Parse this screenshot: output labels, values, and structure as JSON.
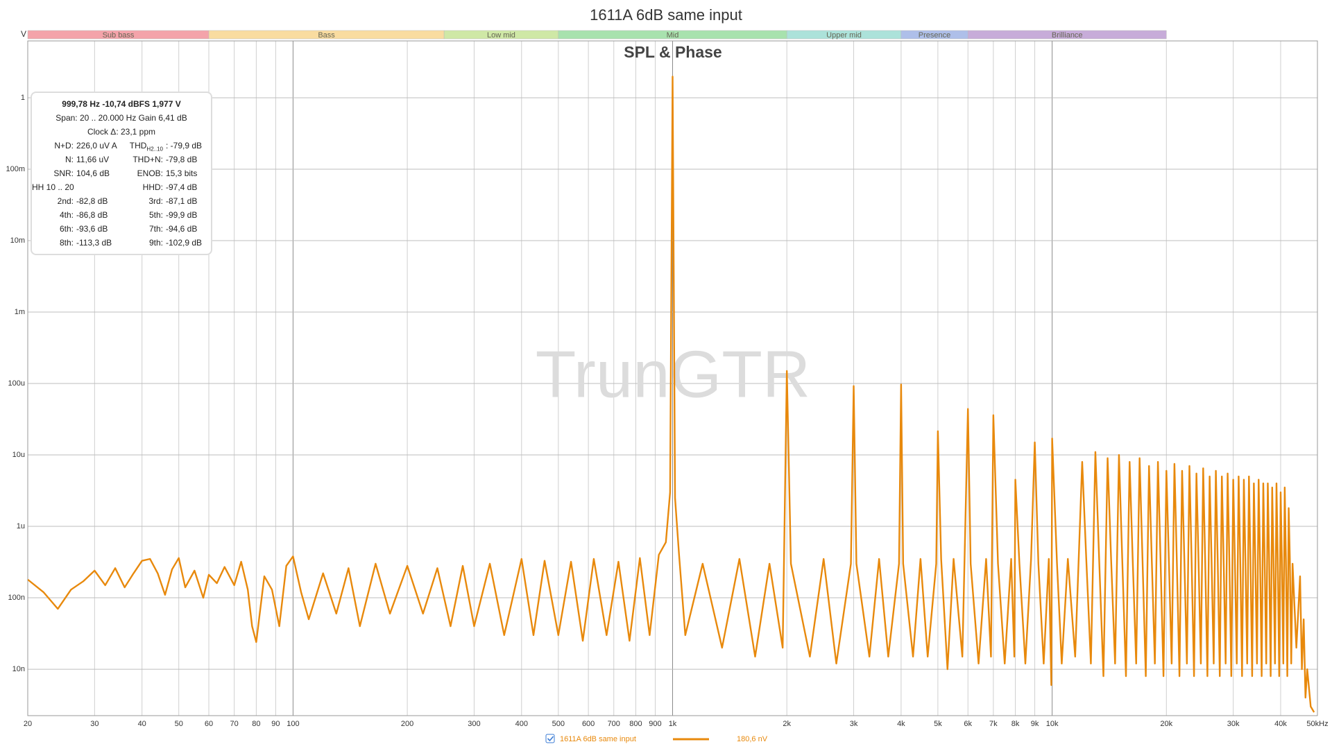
{
  "chart_data": {
    "type": "line",
    "title": "1611A 6dB same input",
    "subtitle": "SPL & Phase",
    "watermark": "TrunGTR",
    "y_unit": "V",
    "log_x": true,
    "log_y": true,
    "grid": true,
    "xlim": [
      20,
      50000
    ],
    "ylim": [
      2.24e-09,
      6.25
    ],
    "xticks": [
      20,
      30,
      40,
      50,
      60,
      70,
      80,
      90,
      100,
      200,
      300,
      400,
      500,
      600,
      700,
      800,
      900,
      {
        "value": 1000,
        "label": "1k"
      },
      {
        "value": 2000,
        "label": "2k"
      },
      {
        "value": 3000,
        "label": "3k"
      },
      {
        "value": 4000,
        "label": "4k"
      },
      {
        "value": 5000,
        "label": "5k"
      },
      {
        "value": 6000,
        "label": "6k"
      },
      {
        "value": 7000,
        "label": "7k"
      },
      {
        "value": 8000,
        "label": "8k"
      },
      {
        "value": 9000,
        "label": "9k"
      },
      {
        "value": 10000,
        "label": "10k"
      },
      {
        "value": 20000,
        "label": "20k"
      },
      {
        "value": 30000,
        "label": "30k"
      },
      {
        "value": 40000,
        "label": "40k"
      },
      {
        "value": 50000,
        "label": "50kHz"
      }
    ],
    "yticks": [
      {
        "value": 1e-08,
        "label": "10n"
      },
      {
        "value": 1e-07,
        "label": "100n"
      },
      {
        "value": 1e-06,
        "label": "1u"
      },
      {
        "value": 1e-05,
        "label": "10u"
      },
      {
        "value": 0.0001,
        "label": "100u"
      },
      {
        "value": 0.001,
        "label": "1m"
      },
      {
        "value": 0.01,
        "label": "10m"
      },
      {
        "value": 0.1,
        "label": "100m"
      },
      1
    ],
    "bands": [
      {
        "name": "Sub bass",
        "from": 20,
        "to": 60,
        "color": "#f4a3aa"
      },
      {
        "name": "Bass",
        "from": 60,
        "to": 250,
        "color": "#f9dca0"
      },
      {
        "name": "Low mid",
        "from": 250,
        "to": 500,
        "color": "#cfe8a6"
      },
      {
        "name": "Mid",
        "from": 500,
        "to": 2000,
        "color": "#a8e2ae"
      },
      {
        "name": "Upper mid",
        "from": 2000,
        "to": 4000,
        "color": "#ace2da"
      },
      {
        "name": "Presence",
        "from": 4000,
        "to": 6000,
        "color": "#aebfe9"
      },
      {
        "name": "Brilliance",
        "from": 6000,
        "to": 20000,
        "color": "#c7acd9"
      }
    ],
    "x": [
      20,
      22,
      24,
      26,
      28,
      30,
      32,
      34,
      36,
      38,
      40,
      42,
      44,
      46,
      48,
      50,
      52,
      55,
      58,
      60,
      63,
      66,
      70,
      73,
      76,
      78,
      80,
      84,
      88,
      92,
      96,
      100,
      105,
      110,
      120,
      130,
      140,
      150,
      165,
      180,
      200,
      220,
      240,
      260,
      280,
      300,
      330,
      360,
      400,
      430,
      460,
      500,
      540,
      580,
      620,
      670,
      720,
      770,
      820,
      870,
      920,
      960,
      985,
      1000,
      1015,
      1040,
      1080,
      1200,
      1350,
      1500,
      1650,
      1800,
      1950,
      2000,
      2050,
      2300,
      2500,
      2700,
      2950,
      3000,
      3050,
      3300,
      3500,
      3700,
      3950,
      4000,
      4050,
      4300,
      4500,
      4700,
      4950,
      5000,
      5100,
      5300,
      5500,
      5800,
      6000,
      6100,
      6400,
      6700,
      6900,
      7000,
      7200,
      7500,
      7800,
      7950,
      8000,
      8200,
      8500,
      8800,
      9000,
      9200,
      9500,
      9800,
      9950,
      10000,
      10300,
      10600,
      11000,
      11500,
      12000,
      12300,
      12650,
      13000,
      13300,
      13650,
      14000,
      14300,
      14650,
      15000,
      15300,
      15650,
      16000,
      16300,
      16650,
      17000,
      17300,
      17650,
      18000,
      18300,
      18650,
      19000,
      19300,
      19650,
      20000,
      20300,
      20650,
      21000,
      21300,
      21650,
      22000,
      22300,
      22650,
      23000,
      23300,
      23650,
      24000,
      24300,
      24650,
      25000,
      25300,
      25650,
      26000,
      26300,
      26650,
      27000,
      27300,
      27650,
      28000,
      28300,
      28650,
      29000,
      29300,
      29650,
      30000,
      30300,
      30650,
      31000,
      31300,
      31650,
      32000,
      32300,
      32650,
      33000,
      33300,
      33650,
      34000,
      34300,
      34650,
      35000,
      35300,
      35650,
      36000,
      36300,
      36650,
      37000,
      37300,
      37650,
      38000,
      38300,
      38650,
      39000,
      39300,
      39650,
      40000,
      40300,
      40650,
      41000,
      41300,
      41650,
      42000,
      42300,
      42650,
      43000,
      44000,
      45000,
      45500,
      46000,
      46500,
      47000,
      48000,
      49000
    ],
    "series": [
      {
        "name": "1611A 6dB same input",
        "color": "#e8890c",
        "values": [
          1.8e-07,
          1.2e-07,
          7e-08,
          1.3e-07,
          1.7e-07,
          2.4e-07,
          1.5e-07,
          2.6e-07,
          1.4e-07,
          2.2e-07,
          3.3e-07,
          3.5e-07,
          2.2e-07,
          1.1e-07,
          2.5e-07,
          3.6e-07,
          1.4e-07,
          2.4e-07,
          1e-07,
          2.1e-07,
          1.6e-07,
          2.7e-07,
          1.5e-07,
          3.2e-07,
          1.3e-07,
          4e-08,
          2.4e-08,
          2e-07,
          1.3e-07,
          4e-08,
          2.8e-07,
          3.8e-07,
          1.2e-07,
          5e-08,
          2.2e-07,
          6e-08,
          2.6e-07,
          4e-08,
          3e-07,
          6e-08,
          2.8e-07,
          6e-08,
          2.6e-07,
          4e-08,
          2.8e-07,
          4e-08,
          3e-07,
          3e-08,
          3.5e-07,
          3e-08,
          3.3e-07,
          3e-08,
          3.2e-07,
          2.5e-08,
          3.5e-07,
          3e-08,
          3.2e-07,
          2.5e-08,
          3.6e-07,
          3e-08,
          4e-07,
          6e-07,
          3e-06,
          1.977,
          2.5e-06,
          4e-07,
          3e-08,
          3e-07,
          2e-08,
          3.5e-07,
          1.5e-08,
          3e-07,
          2e-08,
          0.00015,
          3e-07,
          1.5e-08,
          3.5e-07,
          1.2e-08,
          3e-07,
          9.2e-05,
          3e-07,
          1.5e-08,
          3.5e-07,
          1.5e-08,
          3e-07,
          9.7e-05,
          3e-07,
          1.5e-08,
          3.5e-07,
          1.5e-08,
          3e-07,
          2.15e-05,
          3.5e-07,
          1e-08,
          3.5e-07,
          1.5e-08,
          4.4e-05,
          3e-07,
          1.2e-08,
          3.5e-07,
          1.5e-08,
          3.6e-05,
          3e-07,
          1.2e-08,
          3.5e-07,
          1.5e-08,
          4.5e-06,
          3e-07,
          1.2e-08,
          3.5e-07,
          1.5e-05,
          3e-07,
          1.2e-08,
          3.5e-07,
          6e-09,
          1.7e-05,
          3e-07,
          1.2e-08,
          3.5e-07,
          1.5e-08,
          8e-06,
          3.5e-07,
          1.2e-08,
          1.1e-05,
          3.5e-07,
          8e-09,
          9e-06,
          3.5e-07,
          1.2e-08,
          1e-05,
          3.5e-07,
          8e-09,
          8e-06,
          3.5e-07,
          1.2e-08,
          9e-06,
          3.5e-07,
          8e-09,
          7e-06,
          3.5e-07,
          1.2e-08,
          8e-06,
          3.5e-07,
          8e-09,
          6e-06,
          3.5e-07,
          1.2e-08,
          7.5e-06,
          3.5e-07,
          8e-09,
          6e-06,
          3.5e-07,
          1.2e-08,
          7e-06,
          3.5e-07,
          8e-09,
          5.5e-06,
          3.5e-07,
          1.2e-08,
          6.5e-06,
          3.5e-07,
          8e-09,
          5e-06,
          3.5e-07,
          1.2e-08,
          6e-06,
          3.5e-07,
          8e-09,
          5e-06,
          3.5e-07,
          1.2e-08,
          5.5e-06,
          3.5e-07,
          8e-09,
          4.5e-06,
          3.5e-07,
          1.2e-08,
          5e-06,
          3.5e-07,
          8e-09,
          4.5e-06,
          3.5e-07,
          1.2e-08,
          5e-06,
          3.5e-07,
          8e-09,
          4e-06,
          3.5e-07,
          1.2e-08,
          4.5e-06,
          3.5e-07,
          8e-09,
          4e-06,
          3.5e-07,
          1.2e-08,
          4e-06,
          3.5e-07,
          8e-09,
          3.5e-06,
          3.5e-07,
          1.2e-08,
          4e-06,
          3.5e-07,
          8e-09,
          3e-06,
          3.5e-07,
          1.2e-08,
          3.5e-06,
          3.5e-07,
          8e-09,
          1.8e-06,
          3.5e-07,
          1.2e-08,
          3e-07,
          2e-08,
          2e-07,
          1e-08,
          5e-08,
          4e-09,
          1e-08,
          3e-09,
          2.5e-09
        ]
      }
    ],
    "legend": {
      "cursor_value": "180,6 nV"
    },
    "info": {
      "lines": [
        "999,78 Hz  -10,74 dBFS  1,977 V",
        "Span: 20 .. 20.000 Hz  Gain 6,41 dB",
        "Clock Δ: 23,1 ppm"
      ],
      "pairs": [
        [
          {
            "label": "N+D:",
            "value": "226,0 uV A"
          },
          {
            "label": "THD",
            "sub": "H2..10",
            "value": ": -79,9 dB"
          }
        ],
        [
          {
            "label": "N:",
            "value": "11,66 uV"
          },
          {
            "label": "THD+N:",
            "value": "-79,8 dB"
          }
        ],
        [
          {
            "label": "SNR:",
            "value": "104,6 dB"
          },
          {
            "label": "ENOB:",
            "value": "15,3 bits"
          }
        ],
        [
          {
            "label": "HH 10 .. 20"
          },
          {
            "label": "HHD:",
            "value": "-97,4 dB"
          }
        ],
        [
          {
            "label": "2nd:",
            "value": "-82,8 dB"
          },
          {
            "label": "3rd:",
            "value": "-87,1 dB"
          }
        ],
        [
          {
            "label": "4th:",
            "value": "-86,8 dB"
          },
          {
            "label": "5th:",
            "value": "-99,9 dB"
          }
        ],
        [
          {
            "label": "6th:",
            "value": "-93,6 dB"
          },
          {
            "label": "7th:",
            "value": "-94,6 dB"
          }
        ],
        [
          {
            "label": "8th:",
            "value": "-113,3 dB"
          },
          {
            "label": "9th:",
            "value": "-102,9 dB"
          }
        ]
      ]
    }
  }
}
